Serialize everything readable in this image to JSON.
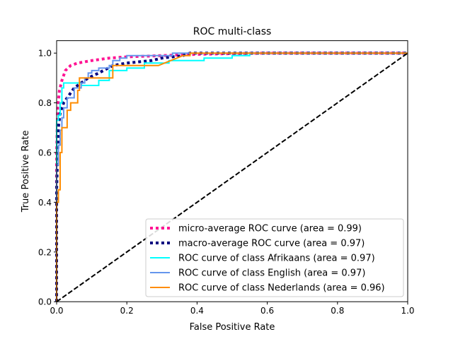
{
  "chart_data": {
    "type": "line",
    "title": "ROC multi-class",
    "xlabel": "False Positive Rate",
    "ylabel": "True Positive Rate",
    "xlim": [
      0.0,
      1.0
    ],
    "ylim": [
      0.0,
      1.05
    ],
    "xticks": [
      0.0,
      0.2,
      0.4,
      0.6,
      0.8,
      1.0
    ],
    "yticks": [
      0.0,
      0.2,
      0.4,
      0.6,
      0.8,
      1.0
    ],
    "xtick_labels": [
      "0.0",
      "0.2",
      "0.4",
      "0.6",
      "0.8",
      "1.0"
    ],
    "ytick_labels": [
      "0.0",
      "0.2",
      "0.4",
      "0.6",
      "0.8",
      "1.0"
    ],
    "grid": false,
    "legend_position": "lower-right",
    "series": [
      {
        "name": "micro-average ROC curve (area = 0.99)",
        "color": "#ff1493",
        "style": "dotted",
        "points": [
          [
            0,
            0
          ],
          [
            0,
            0.6
          ],
          [
            0.003,
            0.78
          ],
          [
            0.008,
            0.85
          ],
          [
            0.015,
            0.89
          ],
          [
            0.025,
            0.93
          ],
          [
            0.04,
            0.95
          ],
          [
            0.06,
            0.96
          ],
          [
            0.1,
            0.97
          ],
          [
            0.15,
            0.98
          ],
          [
            0.2,
            0.985
          ],
          [
            0.3,
            0.99
          ],
          [
            0.4,
            0.995
          ],
          [
            0.5,
            0.998
          ],
          [
            0.6,
            1.0
          ],
          [
            1.0,
            1.0
          ]
        ]
      },
      {
        "name": "macro-average ROC curve (area = 0.97)",
        "color": "#000080",
        "style": "dotted",
        "points": [
          [
            0,
            0
          ],
          [
            0,
            0.45
          ],
          [
            0.005,
            0.7
          ],
          [
            0.01,
            0.76
          ],
          [
            0.02,
            0.8
          ],
          [
            0.03,
            0.82
          ],
          [
            0.04,
            0.84
          ],
          [
            0.05,
            0.86
          ],
          [
            0.07,
            0.88
          ],
          [
            0.09,
            0.9
          ],
          [
            0.12,
            0.92
          ],
          [
            0.16,
            0.95
          ],
          [
            0.2,
            0.96
          ],
          [
            0.27,
            0.97
          ],
          [
            0.3,
            0.98
          ],
          [
            0.36,
            0.99
          ],
          [
            0.38,
            1.0
          ],
          [
            1.0,
            1.0
          ]
        ]
      },
      {
        "name": "ROC curve of class Afrikaans (area = 0.97)",
        "color": "#00ffff",
        "style": "solid",
        "points": [
          [
            0,
            0
          ],
          [
            0,
            0.73
          ],
          [
            0.005,
            0.73
          ],
          [
            0.005,
            0.75
          ],
          [
            0.01,
            0.75
          ],
          [
            0.01,
            0.8
          ],
          [
            0.015,
            0.8
          ],
          [
            0.015,
            0.86
          ],
          [
            0.02,
            0.86
          ],
          [
            0.02,
            0.88
          ],
          [
            0.07,
            0.88
          ],
          [
            0.07,
            0.87
          ],
          [
            0.12,
            0.87
          ],
          [
            0.12,
            0.89
          ],
          [
            0.15,
            0.89
          ],
          [
            0.15,
            0.93
          ],
          [
            0.2,
            0.93
          ],
          [
            0.2,
            0.94
          ],
          [
            0.25,
            0.94
          ],
          [
            0.25,
            0.96
          ],
          [
            0.32,
            0.96
          ],
          [
            0.32,
            0.97
          ],
          [
            0.42,
            0.97
          ],
          [
            0.42,
            0.98
          ],
          [
            0.5,
            0.98
          ],
          [
            0.5,
            0.99
          ],
          [
            0.55,
            0.99
          ],
          [
            0.55,
            1.0
          ],
          [
            1.0,
            1.0
          ]
        ]
      },
      {
        "name": "ROC curve of class English (area = 0.97)",
        "color": "#6495ed",
        "style": "solid",
        "points": [
          [
            0,
            0
          ],
          [
            0,
            0.55
          ],
          [
            0.005,
            0.55
          ],
          [
            0.005,
            0.63
          ],
          [
            0.01,
            0.63
          ],
          [
            0.01,
            0.69
          ],
          [
            0.015,
            0.69
          ],
          [
            0.015,
            0.74
          ],
          [
            0.02,
            0.74
          ],
          [
            0.02,
            0.78
          ],
          [
            0.03,
            0.78
          ],
          [
            0.03,
            0.82
          ],
          [
            0.05,
            0.82
          ],
          [
            0.05,
            0.86
          ],
          [
            0.07,
            0.86
          ],
          [
            0.07,
            0.88
          ],
          [
            0.08,
            0.88
          ],
          [
            0.08,
            0.9
          ],
          [
            0.09,
            0.9
          ],
          [
            0.09,
            0.92
          ],
          [
            0.1,
            0.92
          ],
          [
            0.1,
            0.93
          ],
          [
            0.12,
            0.93
          ],
          [
            0.12,
            0.94
          ],
          [
            0.15,
            0.94
          ],
          [
            0.15,
            0.95
          ],
          [
            0.16,
            0.95
          ],
          [
            0.16,
            0.97
          ],
          [
            0.18,
            0.97
          ],
          [
            0.18,
            0.98
          ],
          [
            0.2,
            0.98
          ],
          [
            0.2,
            0.99
          ],
          [
            0.33,
            0.99
          ],
          [
            0.33,
            1.0
          ],
          [
            1.0,
            1.0
          ]
        ]
      },
      {
        "name": "ROC curve of class Nederlands (area = 0.96)",
        "color": "#ff8c00",
        "style": "solid",
        "points": [
          [
            0,
            0
          ],
          [
            0,
            0.4
          ],
          [
            0.005,
            0.4
          ],
          [
            0.005,
            0.45
          ],
          [
            0.01,
            0.45
          ],
          [
            0.01,
            0.6
          ],
          [
            0.015,
            0.6
          ],
          [
            0.015,
            0.7
          ],
          [
            0.03,
            0.7
          ],
          [
            0.03,
            0.77
          ],
          [
            0.04,
            0.77
          ],
          [
            0.04,
            0.8
          ],
          [
            0.06,
            0.8
          ],
          [
            0.06,
            0.85
          ],
          [
            0.065,
            0.85
          ],
          [
            0.065,
            0.9
          ],
          [
            0.12,
            0.9
          ],
          [
            0.12,
            0.9
          ],
          [
            0.16,
            0.9
          ],
          [
            0.16,
            0.95
          ],
          [
            0.29,
            0.95
          ],
          [
            0.36,
            0.99
          ],
          [
            0.38,
            0.99
          ],
          [
            0.38,
            1.0
          ],
          [
            1.0,
            1.0
          ]
        ]
      },
      {
        "name": "",
        "color": "#000000",
        "style": "dashed",
        "role": "chance-diagonal",
        "points": [
          [
            0,
            0
          ],
          [
            1,
            1
          ]
        ]
      }
    ],
    "legend": [
      "micro-average ROC curve (area = 0.99)",
      "macro-average ROC curve (area = 0.97)",
      "ROC curve of class Afrikaans (area = 0.97)",
      "ROC curve of class English (area = 0.97)",
      "ROC curve of class Nederlands (area = 0.96)"
    ]
  }
}
